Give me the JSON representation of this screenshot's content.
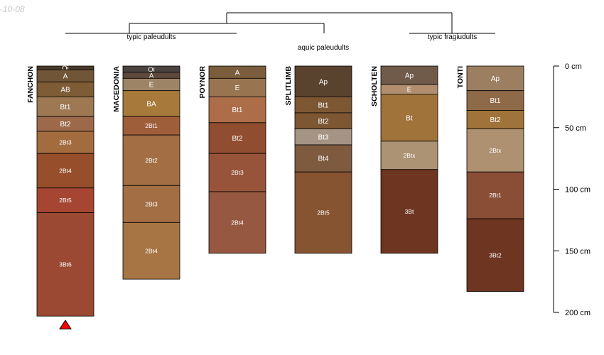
{
  "stamp": "-10-08",
  "chart_data": {
    "type": "soil-profile-sketch",
    "depth_unit": "cm",
    "depth_range": [
      0,
      200
    ],
    "depth_axis": {
      "ticks": [
        0,
        50,
        100,
        150,
        200
      ],
      "tick_labels": [
        "0 cm",
        "50 cm",
        "100 cm",
        "150 cm",
        "200 cm"
      ]
    },
    "groups": [
      {
        "label": "typic paleudults",
        "members": [
          "FANCHON",
          "MACEDONIA",
          "POYNOR"
        ]
      },
      {
        "label": "aquic paleudults",
        "members": [
          "SPLITLIMB"
        ]
      },
      {
        "label": "typic fragiudults",
        "members": [
          "SCHOLTEN",
          "TONTI"
        ]
      }
    ],
    "profiles": [
      {
        "name": "FANCHON",
        "marker": "triangle",
        "marker_color": "#ff0000",
        "horizons": [
          {
            "name": "Oi",
            "top": 0,
            "bottom": 3,
            "color": "#4a3a2c"
          },
          {
            "name": "A",
            "top": 3,
            "bottom": 13,
            "color": "#705536"
          },
          {
            "name": "AB",
            "top": 13,
            "bottom": 25,
            "color": "#7d5c36"
          },
          {
            "name": "Bt1",
            "top": 25,
            "bottom": 41,
            "color": "#9e7853"
          },
          {
            "name": "Bt2",
            "top": 41,
            "bottom": 53,
            "color": "#9c6a4a"
          },
          {
            "name": "2Bt3",
            "top": 53,
            "bottom": 71,
            "color": "#a36c3f"
          },
          {
            "name": "2Bt4",
            "top": 71,
            "bottom": 99,
            "color": "#964f2a"
          },
          {
            "name": "2Bt5",
            "top": 99,
            "bottom": 119,
            "color": "#a64632"
          },
          {
            "name": "3Bt6",
            "top": 119,
            "bottom": 203,
            "color": "#9b4932"
          }
        ]
      },
      {
        "name": "MACEDONIA",
        "horizons": [
          {
            "name": "Oi",
            "top": 0,
            "bottom": 5,
            "color": "#4a4441"
          },
          {
            "name": "A",
            "top": 5,
            "bottom": 10,
            "color": "#5d4a3c"
          },
          {
            "name": "E",
            "top": 10,
            "bottom": 20,
            "color": "#9e8467"
          },
          {
            "name": "BA",
            "top": 20,
            "bottom": 41,
            "color": "#a77a3b"
          },
          {
            "name": "2Bt1",
            "top": 41,
            "bottom": 56,
            "color": "#9e5e3a"
          },
          {
            "name": "2Bt2",
            "top": 56,
            "bottom": 97,
            "color": "#a36e43"
          },
          {
            "name": "2Bt3",
            "top": 97,
            "bottom": 127,
            "color": "#a36e43"
          },
          {
            "name": "2Bt4",
            "top": 127,
            "bottom": 173,
            "color": "#a67543"
          }
        ]
      },
      {
        "name": "POYNOR",
        "horizons": [
          {
            "name": "A",
            "top": 0,
            "bottom": 10,
            "color": "#7b5d3d"
          },
          {
            "name": "E",
            "top": 10,
            "bottom": 25,
            "color": "#987550"
          },
          {
            "name": "Bt1",
            "top": 25,
            "bottom": 46,
            "color": "#ad6d48"
          },
          {
            "name": "Bt2",
            "top": 46,
            "bottom": 71,
            "color": "#914d2f"
          },
          {
            "name": "2Bt3",
            "top": 71,
            "bottom": 102,
            "color": "#97543a"
          },
          {
            "name": "2Bt4",
            "top": 102,
            "bottom": 152,
            "color": "#965840"
          }
        ]
      },
      {
        "name": "SPLITLIMB",
        "horizons": [
          {
            "name": "Ap",
            "top": 0,
            "bottom": 25,
            "color": "#5a432e"
          },
          {
            "name": "Bt1",
            "top": 25,
            "bottom": 38,
            "color": "#7d5734"
          },
          {
            "name": "Bt2",
            "top": 38,
            "bottom": 51,
            "color": "#7d5734"
          },
          {
            "name": "Bt3",
            "top": 51,
            "bottom": 64,
            "color": "#a59483"
          },
          {
            "name": "Bt4",
            "top": 64,
            "bottom": 86,
            "color": "#7e5b3f"
          },
          {
            "name": "2Bt5",
            "top": 86,
            "bottom": 152,
            "color": "#875432"
          }
        ]
      },
      {
        "name": "SCHOLTEN",
        "horizons": [
          {
            "name": "Ap",
            "top": 0,
            "bottom": 15,
            "color": "#705a49"
          },
          {
            "name": "E",
            "top": 15,
            "bottom": 23,
            "color": "#b08e6e"
          },
          {
            "name": "Bt",
            "top": 23,
            "bottom": 61,
            "color": "#a0733a"
          },
          {
            "name": "2Btx",
            "top": 61,
            "bottom": 84,
            "color": "#ab9373"
          },
          {
            "name": "3Bt",
            "top": 84,
            "bottom": 152,
            "color": "#6e3521"
          }
        ]
      },
      {
        "name": "TONTI",
        "horizons": [
          {
            "name": "Ap",
            "top": 0,
            "bottom": 20,
            "color": "#9c7f60"
          },
          {
            "name": "Bt1",
            "top": 20,
            "bottom": 36,
            "color": "#8f6a48"
          },
          {
            "name": "Bt2",
            "top": 36,
            "bottom": 51,
            "color": "#a0733a"
          },
          {
            "name": "2Btx",
            "top": 51,
            "bottom": 86,
            "color": "#ad9170"
          },
          {
            "name": "2Bt1",
            "top": 86,
            "bottom": 124,
            "color": "#8a4e36"
          },
          {
            "name": "3Bt2",
            "top": 124,
            "bottom": 183,
            "color": "#6e3521"
          }
        ]
      }
    ]
  }
}
